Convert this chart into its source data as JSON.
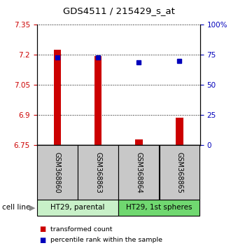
{
  "title": "GDS4511 / 215429_s_at",
  "samples": [
    "GSM368860",
    "GSM368863",
    "GSM368864",
    "GSM368865"
  ],
  "red_values": [
    7.225,
    7.195,
    6.778,
    6.885
  ],
  "blue_values": [
    73,
    73,
    69,
    70
  ],
  "ylim_left": [
    6.75,
    7.35
  ],
  "ylim_right": [
    0,
    100
  ],
  "yticks_left": [
    6.75,
    6.9,
    7.05,
    7.2,
    7.35
  ],
  "yticks_right": [
    0,
    25,
    50,
    75,
    100
  ],
  "ytick_labels_right": [
    "0",
    "25",
    "50",
    "75",
    "100%"
  ],
  "bar_bottom": 6.75,
  "cell_line_groups": [
    {
      "label": "HT29, parental",
      "samples": [
        0,
        1
      ],
      "color": "#c8f0c8"
    },
    {
      "label": "HT29, 1st spheres",
      "samples": [
        2,
        3
      ],
      "color": "#70d870"
    }
  ],
  "sample_box_color": "#c8c8c8",
  "red_color": "#cc0000",
  "blue_color": "#0000bb",
  "legend_red": "transformed count",
  "legend_blue": "percentile rank within the sample",
  "cell_line_label": "cell line"
}
